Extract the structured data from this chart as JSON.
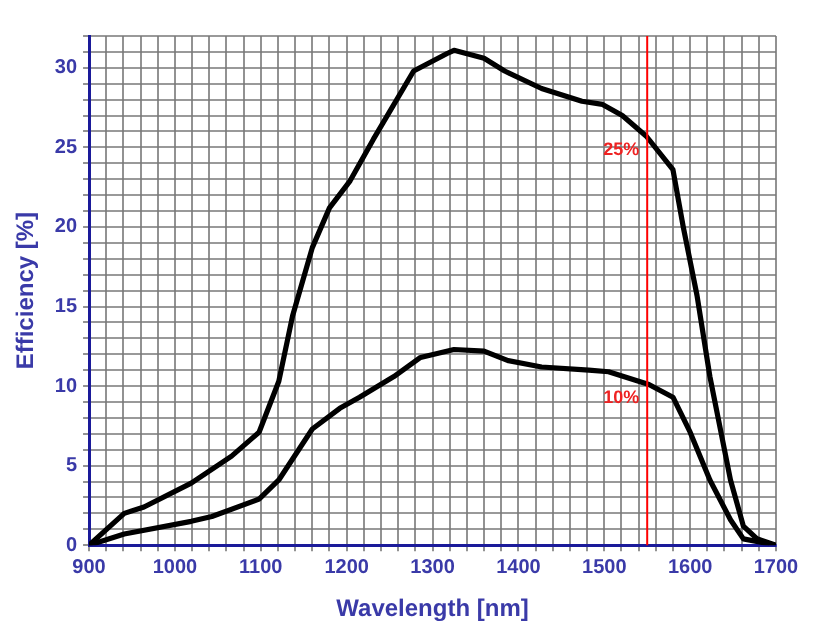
{
  "chart_data": {
    "type": "line",
    "xlabel": "Wavelength [nm]",
    "ylabel": "Efficiency [%]",
    "xlim": [
      900,
      1700
    ],
    "ylim": [
      0,
      32
    ],
    "xticks": [
      900,
      {
        "value": 920,
        "label": null
      },
      {
        "value": 940,
        "label": null
      },
      {
        "value": 960,
        "label": null
      },
      {
        "value": 980,
        "label": null
      },
      1000,
      {
        "value": 1020,
        "label": null
      },
      {
        "value": 1040,
        "label": null
      },
      {
        "value": 1060,
        "label": null
      },
      {
        "value": 1080,
        "label": null
      },
      1100,
      {
        "value": 1120,
        "label": null
      },
      {
        "value": 1140,
        "label": null
      },
      {
        "value": 1160,
        "label": null
      },
      {
        "value": 1180,
        "label": null
      },
      1200,
      {
        "value": 1220,
        "label": null
      },
      {
        "value": 1240,
        "label": null
      },
      {
        "value": 1260,
        "label": null
      },
      {
        "value": 1280,
        "label": null
      },
      1300,
      {
        "value": 1320,
        "label": null
      },
      {
        "value": 1340,
        "label": null
      },
      {
        "value": 1360,
        "label": null
      },
      {
        "value": 1380,
        "label": null
      },
      1400,
      {
        "value": 1420,
        "label": null
      },
      {
        "value": 1440,
        "label": null
      },
      {
        "value": 1460,
        "label": null
      },
      {
        "value": 1480,
        "label": null
      },
      1500,
      {
        "value": 1520,
        "label": null
      },
      {
        "value": 1540,
        "label": null
      },
      {
        "value": 1560,
        "label": null
      },
      {
        "value": 1580,
        "label": null
      },
      1600,
      {
        "value": 1620,
        "label": null
      },
      {
        "value": 1640,
        "label": null
      },
      {
        "value": 1660,
        "label": null
      },
      {
        "value": 1680,
        "label": null
      },
      1700
    ],
    "yticks": [
      0,
      {
        "value": 1,
        "label": null
      },
      {
        "value": 2,
        "label": null
      },
      {
        "value": 3,
        "label": null
      },
      {
        "value": 4,
        "label": null
      },
      5,
      {
        "value": 6,
        "label": null
      },
      {
        "value": 7,
        "label": null
      },
      {
        "value": 8,
        "label": null
      },
      {
        "value": 9,
        "label": null
      },
      10,
      {
        "value": 11,
        "label": null
      },
      {
        "value": 12,
        "label": null
      },
      {
        "value": 13,
        "label": null
      },
      {
        "value": 14,
        "label": null
      },
      15,
      {
        "value": 16,
        "label": null
      },
      {
        "value": 17,
        "label": null
      },
      {
        "value": 18,
        "label": null
      },
      {
        "value": 19,
        "label": null
      },
      20,
      {
        "value": 21,
        "label": null
      },
      {
        "value": 22,
        "label": null
      },
      {
        "value": 23,
        "label": null
      },
      {
        "value": 24,
        "label": null
      },
      25,
      {
        "value": 26,
        "label": null
      },
      {
        "value": 27,
        "label": null
      },
      {
        "value": 28,
        "label": null
      },
      {
        "value": 29,
        "label": null
      },
      30,
      {
        "value": 31,
        "label": null
      },
      {
        "value": 32,
        "label": null
      }
    ],
    "grid": true,
    "legend": false,
    "marker": "none",
    "line_style": "solid",
    "series": [
      {
        "color": "#000000",
        "x": [
          900,
          941,
          964,
          1019,
          1066,
          1098,
          1121,
          1137,
          1160,
          1180,
          1204,
          1231,
          1278,
          1317,
          1325,
          1360,
          1384,
          1427,
          1474,
          1498,
          1521,
          1549,
          1580,
          1592,
          1608,
          1623,
          1647,
          1662,
          1678,
          1700
        ],
        "values": [
          0,
          2.0,
          2.4,
          3.9,
          5.6,
          7.1,
          10.3,
          14.4,
          18.7,
          21.2,
          22.9,
          25.5,
          29.8,
          30.9,
          31.1,
          30.6,
          29.8,
          28.7,
          27.9,
          27.7,
          27.0,
          25.7,
          23.6,
          20.0,
          15.7,
          10.6,
          4.1,
          1.2,
          0.4,
          0
        ]
      },
      {
        "color": "#000000",
        "x": [
          900,
          941,
          1019,
          1043,
          1098,
          1121,
          1160,
          1192,
          1215,
          1255,
          1286,
          1325,
          1360,
          1388,
          1427,
          1482,
          1505,
          1552,
          1580,
          1600,
          1623,
          1647,
          1662,
          1690
        ],
        "values": [
          0,
          0.7,
          1.5,
          1.8,
          2.9,
          4.1,
          7.3,
          8.6,
          9.3,
          10.6,
          11.8,
          12.3,
          12.2,
          11.6,
          11.2,
          11.0,
          10.9,
          10.1,
          9.3,
          7.1,
          4.1,
          1.6,
          0.4,
          0.1
        ]
      }
    ],
    "ref_lines": [
      {
        "axis": "x",
        "value": 1550,
        "color": "#ff0000"
      }
    ],
    "annotations": [
      {
        "text": "25%",
        "x": 1550,
        "y": 25.7
      },
      {
        "text": "10%",
        "x": 1550,
        "y": 10.1
      }
    ]
  }
}
